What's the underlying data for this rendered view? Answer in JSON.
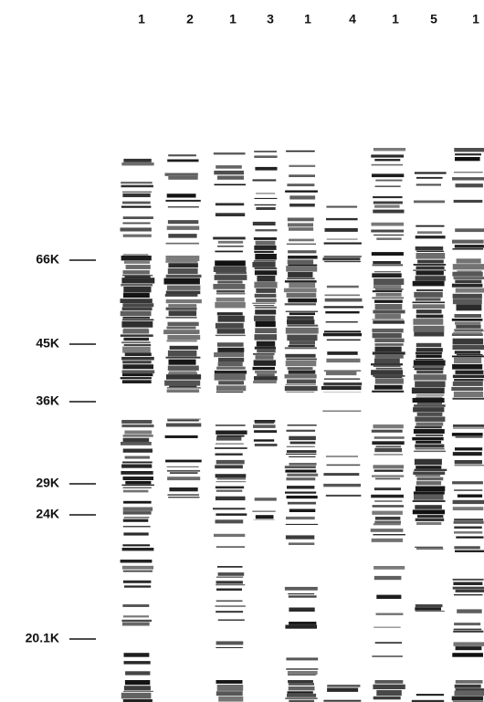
{
  "lanes": [
    "1",
    "2",
    "1",
    "3",
    "1",
    "4",
    "1",
    "5",
    "1"
  ],
  "markers": [
    "66K",
    "45K",
    "36K",
    "29K",
    "24K",
    "20.1K"
  ]
}
